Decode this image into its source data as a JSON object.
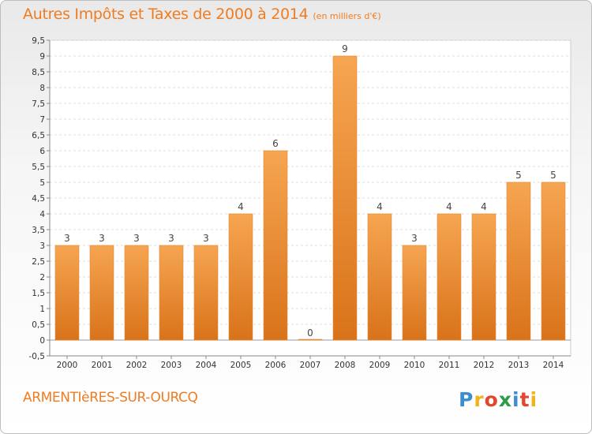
{
  "title": "Autres Impôts et Taxes de 2000 à 2014",
  "subtitle": "(en milliers d'€)",
  "commune": "ARMENTIèRES-SUR-OURCQ",
  "brand": "Proxiti",
  "colors": {
    "bar_light": "#f6a551",
    "bar_dark": "#d9731a",
    "accent": "#f07c22"
  },
  "chart_data": {
    "type": "bar",
    "categories": [
      "2000",
      "2001",
      "2002",
      "2003",
      "2004",
      "2005",
      "2006",
      "2007",
      "2008",
      "2009",
      "2010",
      "2011",
      "2012",
      "2013",
      "2014"
    ],
    "values": [
      3,
      3,
      3,
      3,
      3,
      4,
      6,
      0,
      9,
      4,
      3,
      4,
      4,
      5,
      5
    ],
    "data_labels": [
      "3",
      "3",
      "3",
      "3",
      "3",
      "4",
      "6",
      "0",
      "9",
      "4",
      "3",
      "4",
      "4",
      "5",
      "5"
    ],
    "ylim": [
      -0.5,
      9.5
    ],
    "yticks": [
      "-0,5",
      "0",
      "0,5",
      "1",
      "1,5",
      "2",
      "2,5",
      "3",
      "3,5",
      "4",
      "4,5",
      "5",
      "5,5",
      "6",
      "6,5",
      "7",
      "7,5",
      "8",
      "8,5",
      "9",
      "9,5"
    ],
    "grid": true,
    "xlabel": "",
    "ylabel": ""
  }
}
